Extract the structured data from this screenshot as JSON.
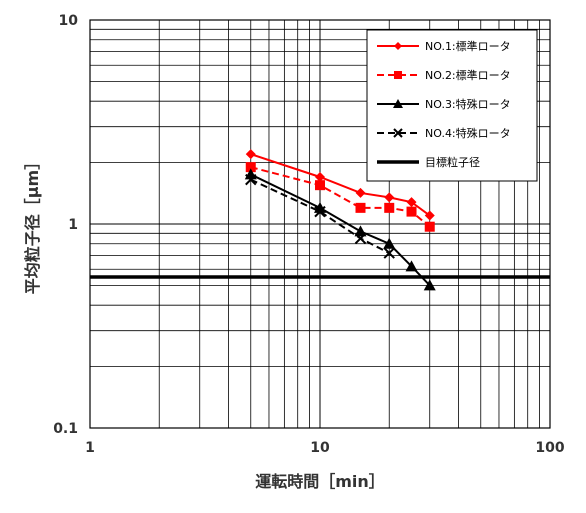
{
  "chart_data": {
    "type": "line",
    "title": "",
    "xlabel": "運転時間［min］",
    "ylabel": "平均粒子径［μm］",
    "x_scale": "log",
    "y_scale": "log",
    "xlim": [
      1,
      100
    ],
    "ylim": [
      0.1,
      10
    ],
    "x_tick_labels": [
      "1",
      "10",
      "100"
    ],
    "y_tick_labels": [
      "0.1",
      "1",
      "10"
    ],
    "grid": true,
    "legend_position": "top-right",
    "series": [
      {
        "name": "NO.1:標準ロータ",
        "color": "#ff0000",
        "line_style": "solid",
        "marker": "diamond",
        "x": [
          5,
          10,
          15,
          20,
          25,
          30
        ],
        "y": [
          2.2,
          1.7,
          1.42,
          1.35,
          1.28,
          1.1
        ]
      },
      {
        "name": "NO.2:標準ロータ",
        "color": "#ff0000",
        "line_style": "dashed",
        "marker": "square",
        "x": [
          5,
          10,
          15,
          20,
          25,
          30
        ],
        "y": [
          1.9,
          1.55,
          1.2,
          1.2,
          1.15,
          0.97
        ]
      },
      {
        "name": "NO.3:特殊ロータ",
        "color": "#000000",
        "line_style": "solid",
        "marker": "triangle",
        "x": [
          5,
          10,
          15,
          20,
          25,
          30
        ],
        "y": [
          1.75,
          1.2,
          0.92,
          0.8,
          0.62,
          0.5
        ]
      },
      {
        "name": "NO.4:特殊ロータ",
        "color": "#000000",
        "line_style": "dashed",
        "marker": "x",
        "x": [
          5,
          10,
          15,
          20
        ],
        "y": [
          1.65,
          1.15,
          0.85,
          0.72
        ]
      },
      {
        "name": "目標粒子径",
        "color": "#000000",
        "line_style": "solid-thick",
        "marker": "none",
        "x": [
          1,
          100
        ],
        "y": [
          0.55,
          0.55
        ]
      }
    ]
  }
}
